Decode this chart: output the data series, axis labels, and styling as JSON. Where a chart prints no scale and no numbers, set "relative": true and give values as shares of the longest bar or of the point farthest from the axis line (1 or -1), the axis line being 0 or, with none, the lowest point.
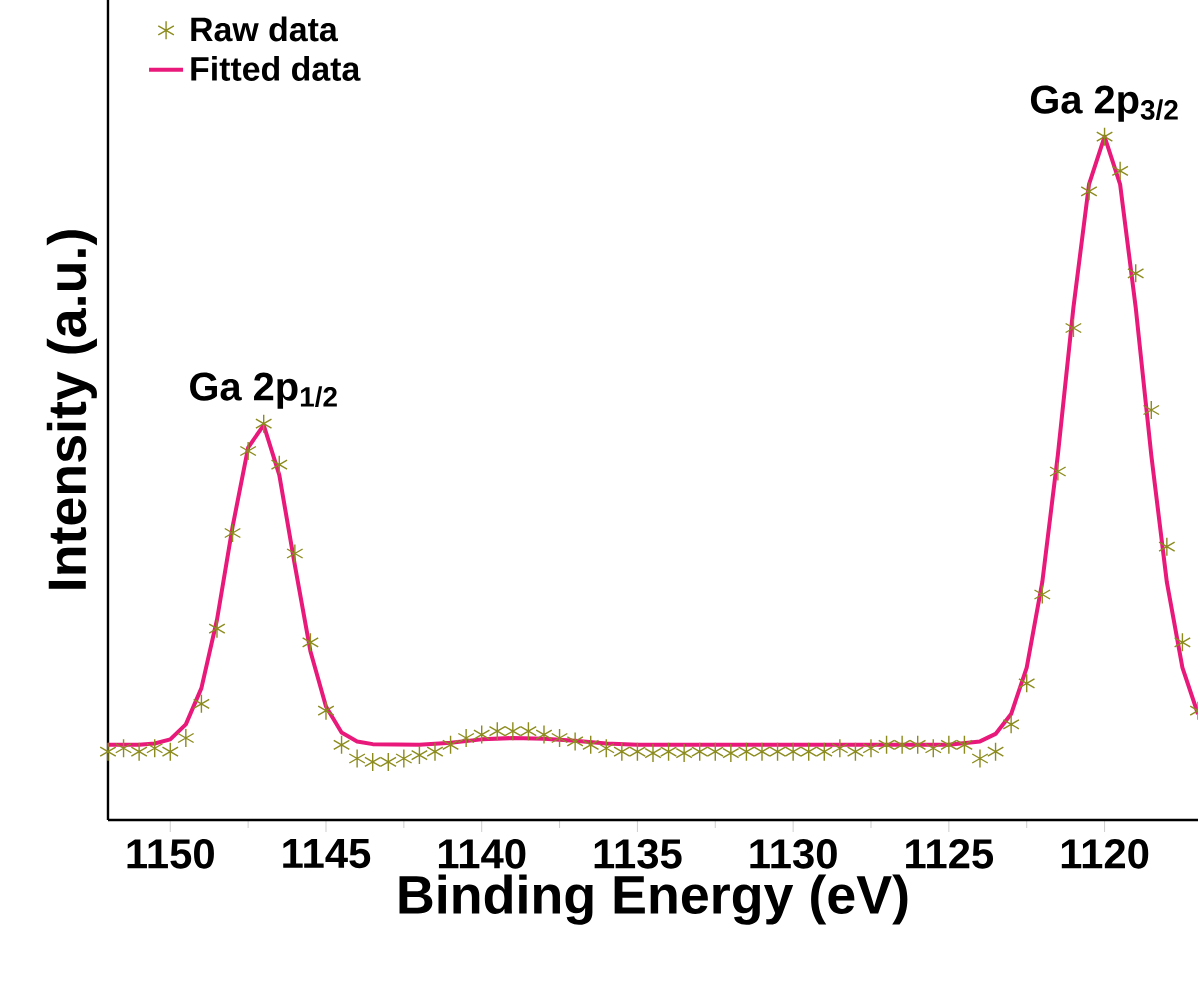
{
  "chart_data": {
    "type": "scatter",
    "relative": true,
    "xlabel": "Binding Energy (eV)",
    "ylabel": "Intensity (a.u.)",
    "xlim": [
      1152,
      1117
    ],
    "xticks": [
      1150,
      1145,
      1140,
      1135,
      1130,
      1125,
      1120
    ],
    "legend": "top left",
    "annotations": [
      {
        "text": "Ga 2p$_{1/2}$",
        "x": 1147,
        "y": 0.58
      },
      {
        "text": "Ga 2p$_{3/2}$",
        "x": 1120,
        "y": 1.0
      }
    ],
    "series": [
      {
        "name": "Raw data",
        "marker": "cross",
        "color": "#8c8c1e",
        "x": [
          1152,
          1151.5,
          1151,
          1150.5,
          1150,
          1149.5,
          1149,
          1148.5,
          1148,
          1147.5,
          1147,
          1146.5,
          1146,
          1145.5,
          1145,
          1144.5,
          1144,
          1143.5,
          1143,
          1142.5,
          1142,
          1141.5,
          1141,
          1140.5,
          1140,
          1139.5,
          1139,
          1138.5,
          1138,
          1137.5,
          1137,
          1136.5,
          1136,
          1135.5,
          1135,
          1134.5,
          1134,
          1133.5,
          1133,
          1132.5,
          1132,
          1131.5,
          1131,
          1130.5,
          1130,
          1129.5,
          1129,
          1128.5,
          1128,
          1127.5,
          1127,
          1126.5,
          1126,
          1125.5,
          1125,
          1124.5,
          1124,
          1123.5,
          1123,
          1122.5,
          1122,
          1121.5,
          1121,
          1120.5,
          1120,
          1119.5,
          1119,
          1118.5,
          1118,
          1117.5,
          1117
        ],
        "values": [
          0.1,
          0.105,
          0.1,
          0.105,
          0.1,
          0.12,
          0.17,
          0.28,
          0.42,
          0.54,
          0.58,
          0.52,
          0.39,
          0.26,
          0.16,
          0.11,
          0.09,
          0.085,
          0.085,
          0.09,
          0.095,
          0.1,
          0.11,
          0.12,
          0.125,
          0.13,
          0.13,
          0.13,
          0.125,
          0.12,
          0.115,
          0.11,
          0.105,
          0.1,
          0.1,
          0.098,
          0.1,
          0.098,
          0.1,
          0.1,
          0.098,
          0.1,
          0.1,
          0.1,
          0.1,
          0.1,
          0.1,
          0.105,
          0.1,
          0.105,
          0.11,
          0.11,
          0.11,
          0.105,
          0.11,
          0.11,
          0.09,
          0.1,
          0.14,
          0.2,
          0.33,
          0.51,
          0.72,
          0.92,
          1.0,
          0.95,
          0.8,
          0.6,
          0.4,
          0.26,
          0.16
        ]
      },
      {
        "name": "Fitted data",
        "type": "line",
        "marker": "none",
        "color": "#e8197a",
        "x": [
          1152,
          1151,
          1150.5,
          1150,
          1149.5,
          1149,
          1148.5,
          1148,
          1147.5,
          1147,
          1146.5,
          1146,
          1145.5,
          1145,
          1144.5,
          1144,
          1143.5,
          1142,
          1141,
          1140,
          1139,
          1138,
          1137,
          1136,
          1135,
          1130,
          1125,
          1124,
          1123.5,
          1123,
          1122.5,
          1122,
          1121.5,
          1121,
          1120.5,
          1120,
          1119.5,
          1119,
          1118.5,
          1118,
          1117.5,
          1117
        ],
        "values": [
          0.11,
          0.11,
          0.112,
          0.118,
          0.14,
          0.193,
          0.293,
          0.429,
          0.545,
          0.578,
          0.505,
          0.373,
          0.247,
          0.166,
          0.128,
          0.115,
          0.111,
          0.11,
          0.113,
          0.118,
          0.12,
          0.119,
          0.116,
          0.112,
          0.11,
          0.11,
          0.11,
          0.115,
          0.126,
          0.155,
          0.223,
          0.348,
          0.534,
          0.75,
          0.93,
          1.0,
          0.93,
          0.75,
          0.534,
          0.348,
          0.223,
          0.155
        ]
      }
    ]
  }
}
